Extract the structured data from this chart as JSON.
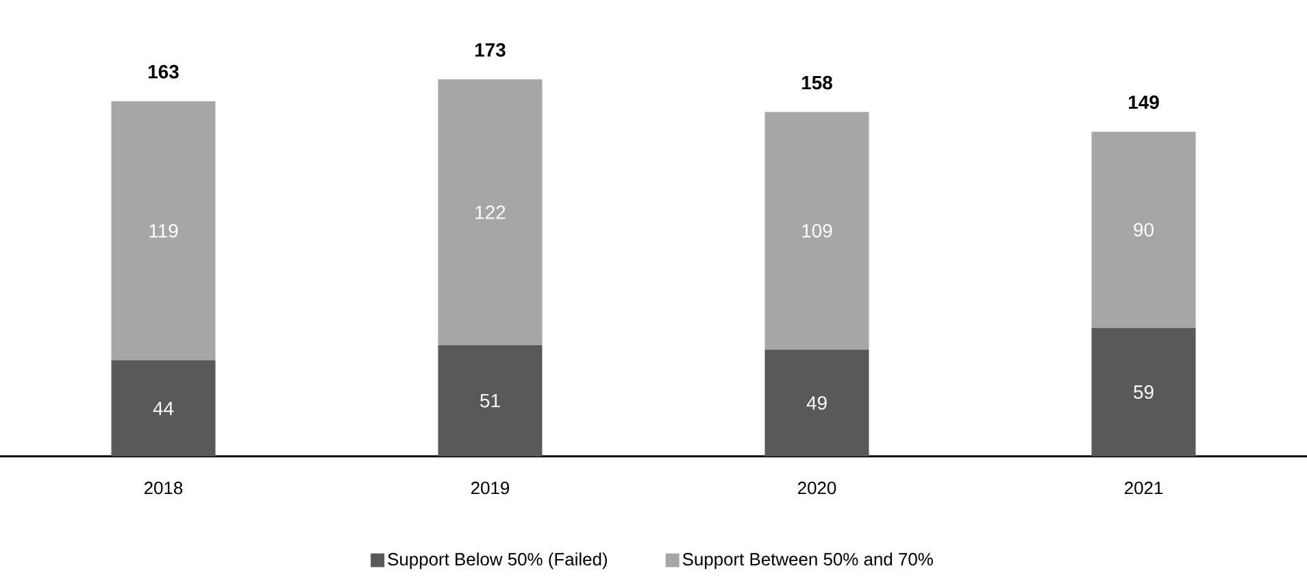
{
  "chart_data": {
    "type": "bar",
    "stacked": true,
    "categories": [
      "2018",
      "2019",
      "2020",
      "2021"
    ],
    "series": [
      {
        "name": "Support Below 50% (Failed)",
        "color": "#595959",
        "values": [
          44,
          51,
          49,
          59
        ]
      },
      {
        "name": "Support Between 50% and 70%",
        "color": "#a6a6a6",
        "values": [
          119,
          122,
          109,
          90
        ]
      }
    ],
    "data_labels": true,
    "totals": [
      "163",
      "173",
      "158",
      "149"
    ],
    "legend": "bottom"
  }
}
